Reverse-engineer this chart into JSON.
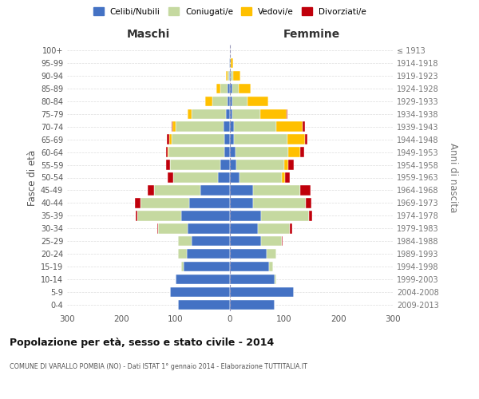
{
  "age_groups": [
    "0-4",
    "5-9",
    "10-14",
    "15-19",
    "20-24",
    "25-29",
    "30-34",
    "35-39",
    "40-44",
    "45-49",
    "50-54",
    "55-59",
    "60-64",
    "65-69",
    "70-74",
    "75-79",
    "80-84",
    "85-89",
    "90-94",
    "95-99",
    "100+"
  ],
  "birth_years": [
    "2009-2013",
    "2004-2008",
    "1999-2003",
    "1994-1998",
    "1989-1993",
    "1984-1988",
    "1979-1983",
    "1974-1978",
    "1969-1973",
    "1964-1968",
    "1959-1963",
    "1954-1958",
    "1949-1953",
    "1944-1948",
    "1939-1943",
    "1934-1938",
    "1929-1933",
    "1924-1928",
    "1919-1923",
    "1914-1918",
    "≤ 1913"
  ],
  "maschi": {
    "celibi": [
      95,
      110,
      100,
      85,
      80,
      70,
      78,
      90,
      75,
      55,
      22,
      18,
      10,
      10,
      12,
      8,
      5,
      4,
      2,
      1,
      0
    ],
    "coniugati": [
      0,
      0,
      0,
      5,
      15,
      25,
      55,
      80,
      90,
      85,
      83,
      93,
      103,
      98,
      88,
      62,
      28,
      13,
      3,
      1,
      0
    ],
    "vedovi": [
      0,
      0,
      0,
      0,
      0,
      0,
      0,
      0,
      0,
      0,
      0,
      0,
      1,
      4,
      6,
      8,
      13,
      8,
      3,
      0,
      0
    ],
    "divorziati": [
      0,
      0,
      0,
      0,
      0,
      1,
      1,
      4,
      10,
      12,
      9,
      7,
      4,
      4,
      2,
      0,
      0,
      0,
      0,
      0,
      0
    ]
  },
  "femmine": {
    "nubili": [
      82,
      118,
      82,
      72,
      68,
      58,
      52,
      58,
      42,
      42,
      18,
      12,
      10,
      8,
      8,
      4,
      4,
      4,
      2,
      0,
      0
    ],
    "coniugate": [
      0,
      0,
      4,
      8,
      18,
      38,
      58,
      88,
      98,
      88,
      78,
      88,
      98,
      98,
      78,
      52,
      28,
      12,
      4,
      2,
      0
    ],
    "vedove": [
      0,
      0,
      0,
      0,
      0,
      0,
      0,
      0,
      0,
      0,
      6,
      8,
      22,
      32,
      48,
      48,
      38,
      22,
      13,
      4,
      0
    ],
    "divorziate": [
      0,
      0,
      0,
      0,
      0,
      1,
      4,
      6,
      10,
      18,
      8,
      10,
      7,
      4,
      4,
      2,
      0,
      0,
      0,
      0,
      0
    ]
  },
  "colors": {
    "celibi": "#4472c4",
    "coniugati": "#c5d9a0",
    "vedovi": "#ffc000",
    "divorziati": "#c0000b"
  },
  "xlim": 300,
  "title": "Popolazione per età, sesso e stato civile - 2014",
  "subtitle": "COMUNE DI VARALLO POMBIA (NO) - Dati ISTAT 1° gennaio 2014 - Elaborazione TUTTITALIA.IT",
  "ylabel_left": "Fasce di età",
  "ylabel_right": "Anni di nascita",
  "xlabel_maschi": "Maschi",
  "xlabel_femmine": "Femmine",
  "bg_color": "#ffffff",
  "grid_color": "#cccccc",
  "xticks": [
    -300,
    -200,
    -100,
    0,
    100,
    200,
    300
  ]
}
